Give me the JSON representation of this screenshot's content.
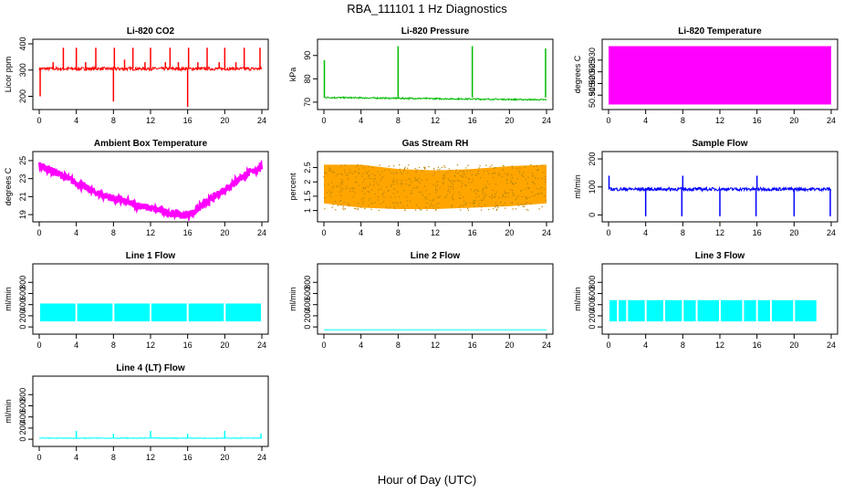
{
  "figure": {
    "title": "RBA_111101  1 Hz Diagnostics",
    "xlabel": "Hour of Day (UTC)"
  },
  "chart_data": [
    {
      "type": "line",
      "title": "Li-820 CO2",
      "ylabel": "Licor ppm",
      "color": "#ff0000",
      "xlim": [
        0,
        24
      ],
      "ylim": [
        160,
        400
      ],
      "xticks": [
        0,
        4,
        8,
        12,
        16,
        20,
        24
      ],
      "yticks": [
        200,
        300,
        400
      ],
      "series": [
        {
          "name": "CO2",
          "baseline": 305,
          "noise": 6,
          "spikes": [
            [
              0.1,
              200
            ],
            [
              1.5,
              330
            ],
            [
              2.6,
              385
            ],
            [
              4.0,
              385
            ],
            [
              5.0,
              330
            ],
            [
              6.1,
              385
            ],
            [
              8.0,
              180
            ],
            [
              8.1,
              385
            ],
            [
              9.2,
              340
            ],
            [
              10.1,
              385
            ],
            [
              11.4,
              330
            ],
            [
              12.0,
              385
            ],
            [
              13.6,
              330
            ],
            [
              14.1,
              385
            ],
            [
              15.0,
              330
            ],
            [
              16.0,
              160
            ],
            [
              16.1,
              385
            ],
            [
              17.1,
              330
            ],
            [
              18.1,
              385
            ],
            [
              19.4,
              330
            ],
            [
              20.0,
              385
            ],
            [
              21.2,
              330
            ],
            [
              22.1,
              385
            ],
            [
              23.8,
              385
            ]
          ]
        }
      ]
    },
    {
      "type": "line",
      "title": "Li-820 Pressure",
      "ylabel": "kPa",
      "color": "#00bb00",
      "xlim": [
        0,
        24
      ],
      "ylim": [
        68,
        95
      ],
      "xticks": [
        0,
        4,
        8,
        12,
        16,
        20,
        24
      ],
      "yticks": [
        70,
        80,
        90
      ],
      "series": [
        {
          "name": "Pressure",
          "baseline_start": 72,
          "baseline_end": 71,
          "noise": 0.3,
          "spikes": [
            [
              0.05,
              88
            ],
            [
              8.0,
              94
            ],
            [
              16.0,
              94
            ],
            [
              23.9,
              93
            ]
          ]
        }
      ]
    },
    {
      "type": "area",
      "title": "Li-820 Temperature",
      "ylabel": "degrees C",
      "color": "#ff00ff",
      "xlim": [
        0,
        24
      ],
      "ylim": [
        50.91,
        50.937
      ],
      "xticks": [
        0,
        4,
        8,
        12,
        16,
        20,
        24
      ],
      "yticks": [
        50.915,
        50.92,
        50.925,
        50.93
      ],
      "band": [
        50.911,
        50.936
      ]
    },
    {
      "type": "line",
      "title": "Ambient Box Temperature",
      "ylabel": "degrees C",
      "color": "#ff00ff",
      "xlim": [
        0,
        24
      ],
      "ylim": [
        18.5,
        25.5
      ],
      "xticks": [
        0,
        4,
        8,
        12,
        16,
        20,
        24
      ],
      "yticks": [
        19,
        21,
        23,
        25
      ],
      "series": [
        {
          "name": "Box T",
          "x": [
            0,
            2,
            4,
            6,
            8,
            10,
            12,
            14,
            15.5,
            16.5,
            18,
            20,
            22,
            24
          ],
          "y": [
            24.5,
            23.6,
            22.5,
            21.5,
            20.8,
            20.2,
            19.7,
            19.2,
            18.9,
            19.2,
            20.3,
            21.8,
            23.3,
            24.3
          ],
          "noise": 0.4
        }
      ]
    },
    {
      "type": "scatter",
      "title": "Gas Stream RH",
      "ylabel": "percent",
      "color": "#ffa500",
      "color2": "#b8860b",
      "xlim": [
        0,
        24
      ],
      "ylim": [
        0.7,
        2.9
      ],
      "xticks": [
        0,
        4,
        8,
        12,
        16,
        20,
        24
      ],
      "yticks": [
        1.0,
        1.5,
        2.0,
        2.5
      ],
      "band_low": [
        1.25,
        1.1,
        1.05,
        1.05,
        1.1,
        1.15,
        1.25
      ],
      "band_high": [
        2.6,
        2.6,
        2.45,
        2.4,
        2.45,
        2.55,
        2.6
      ]
    },
    {
      "type": "line",
      "title": "Sample Flow",
      "ylabel": "ml/min",
      "color": "#0000ff",
      "xlim": [
        0,
        24
      ],
      "ylim": [
        -15,
        210
      ],
      "xticks": [
        0,
        4,
        8,
        12,
        16,
        20,
        24
      ],
      "yticks": [
        0,
        100,
        200
      ],
      "series": [
        {
          "name": "Sample",
          "baseline": 92,
          "noise": 6,
          "spikes": [
            [
              0.05,
              140
            ],
            [
              4.0,
              -5
            ],
            [
              7.9,
              -5
            ],
            [
              8.0,
              140
            ],
            [
              12.0,
              -5
            ],
            [
              15.9,
              -5
            ],
            [
              16.0,
              140
            ],
            [
              20.0,
              -5
            ],
            [
              23.9,
              -5
            ]
          ]
        }
      ]
    },
    {
      "type": "area",
      "title": "Line 1 Flow",
      "ylabel": "ml/min",
      "color": "#00ffff",
      "xlim": [
        0,
        24
      ],
      "ylim": [
        -80,
        1050
      ],
      "xticks": [
        0,
        4,
        8,
        12,
        16,
        20,
        24
      ],
      "yticks": [
        0,
        200,
        400,
        600,
        800
      ],
      "band": [
        100,
        420
      ],
      "gaps": [
        4.0,
        8.0,
        12.0,
        16.0,
        20.0,
        24.0
      ]
    },
    {
      "type": "line",
      "title": "Line 2 Flow",
      "ylabel": "ml/min",
      "color": "#00ffff",
      "xlim": [
        0,
        24
      ],
      "ylim": [
        -80,
        1050
      ],
      "xticks": [
        0,
        4,
        8,
        12,
        16,
        20,
        24
      ],
      "yticks": [
        0,
        200,
        400,
        600,
        800
      ],
      "series": [
        {
          "name": "Line 2",
          "baseline": -50,
          "noise": 0,
          "spikes": []
        }
      ]
    },
    {
      "type": "area",
      "title": "Line 3 Flow",
      "ylabel": "ml/min",
      "color": "#00ffff",
      "xlim": [
        0,
        24
      ],
      "ylim": [
        -80,
        1050
      ],
      "xticks": [
        0,
        4,
        8,
        12,
        16,
        20,
        24
      ],
      "yticks": [
        0,
        200,
        400,
        600,
        800
      ],
      "band": [
        100,
        480
      ],
      "gaps": [
        1.0,
        2.0,
        4.0,
        6.0,
        8.0,
        9.5,
        12.0,
        14.5,
        16.0,
        17.5,
        20.0,
        22.5
      ]
    },
    {
      "type": "line",
      "title": "Line 4 (LT) Flow",
      "ylabel": "ml/min",
      "color": "#00ffff",
      "xlim": [
        0,
        24
      ],
      "ylim": [
        -80,
        1050
      ],
      "xticks": [
        0,
        4,
        8,
        12,
        16,
        20,
        24
      ],
      "yticks": [
        0,
        200,
        400,
        600,
        800
      ],
      "series": [
        {
          "name": "Line 4",
          "baseline": 20,
          "noise": 6,
          "spikes": [
            [
              4.0,
              150
            ],
            [
              8.0,
              100
            ],
            [
              12.0,
              150
            ],
            [
              16.0,
              100
            ],
            [
              20.0,
              150
            ],
            [
              23.9,
              100
            ]
          ]
        }
      ]
    }
  ]
}
